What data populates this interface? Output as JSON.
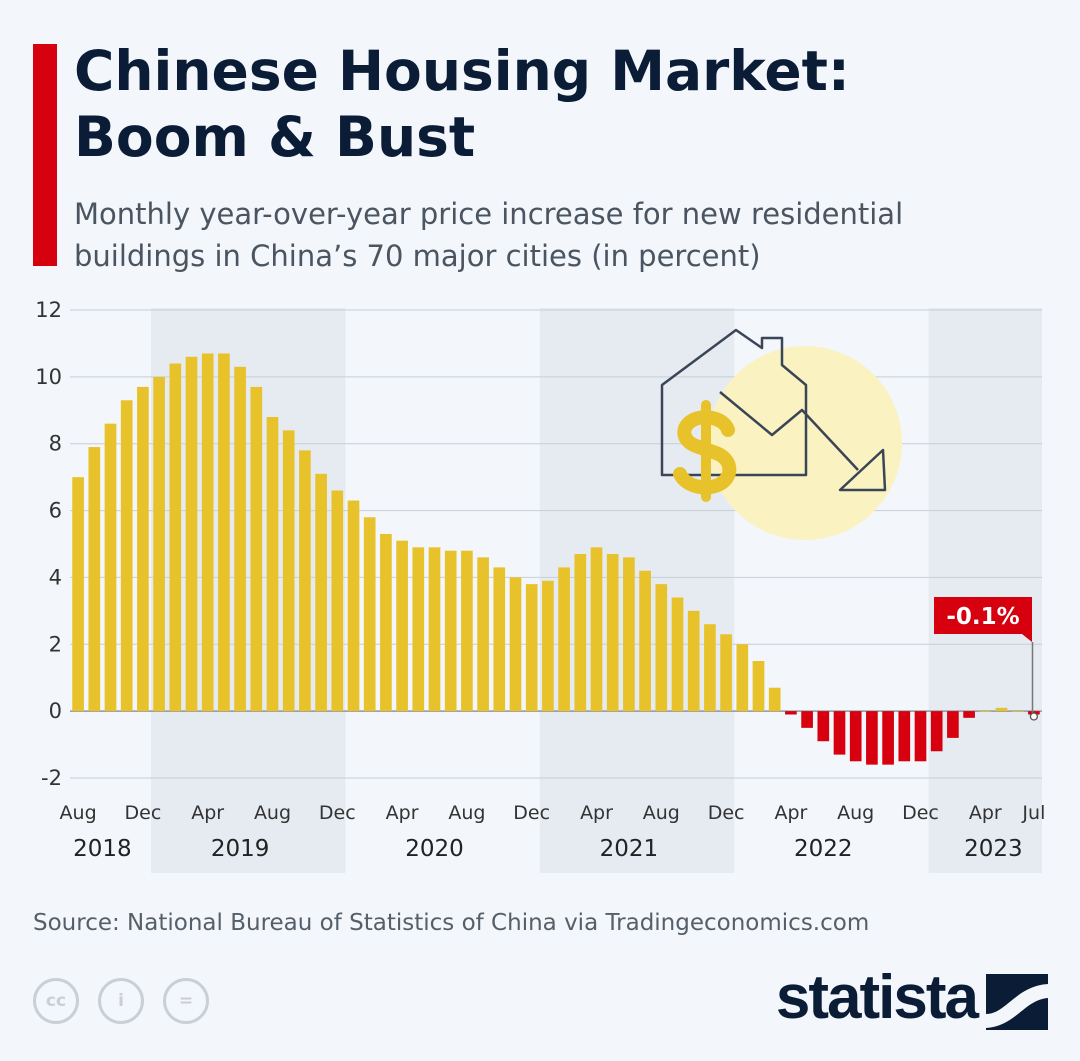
{
  "header": {
    "title_line1": "Chinese Housing Market:",
    "title_line2": "Boom & Bust",
    "subtitle_line1": "Monthly year-over-year price increase for new residential",
    "subtitle_line2": "buildings in China’s 70 major cities (in percent)"
  },
  "footer": {
    "source": "Source: National Bureau of Statistics of China via Tradingeconomics.com",
    "brand": "statista",
    "license_icons": [
      "cc",
      "i",
      "="
    ]
  },
  "colors": {
    "positive": "#e8c22b",
    "negative": "#d7000f",
    "title": "#0b1c36",
    "accent": "#d7000f",
    "band": "#e6ebf2",
    "illustration_circle": "#fbf2c2"
  },
  "icons": [
    "house-price-down-icon",
    "dollar-icon",
    "down-trend-arrow-icon"
  ],
  "chart_data": {
    "type": "bar",
    "title": "Chinese Housing Market: Boom & Bust",
    "xlabel": "",
    "ylabel": "",
    "ylim": [
      -2,
      12
    ],
    "yticks": [
      -2,
      0,
      2,
      4,
      6,
      8,
      10,
      12
    ],
    "grid": true,
    "start": "2018-08",
    "end": "2023-07",
    "x_tick_labels": [
      {
        "label": "Aug",
        "index": 0
      },
      {
        "label": "Dec",
        "index": 4
      },
      {
        "label": "Apr",
        "index": 8
      },
      {
        "label": "Aug",
        "index": 12
      },
      {
        "label": "Dec",
        "index": 16
      },
      {
        "label": "Apr",
        "index": 20
      },
      {
        "label": "Aug",
        "index": 24
      },
      {
        "label": "Dec",
        "index": 28
      },
      {
        "label": "Apr",
        "index": 32
      },
      {
        "label": "Aug",
        "index": 36
      },
      {
        "label": "Dec",
        "index": 40
      },
      {
        "label": "Apr",
        "index": 44
      },
      {
        "label": "Aug",
        "index": 48
      },
      {
        "label": "Dec",
        "index": 52
      },
      {
        "label": "Apr",
        "index": 56
      },
      {
        "label": "Jul",
        "index": 59
      }
    ],
    "year_labels": [
      {
        "label": "2018",
        "center_index": 1.5
      },
      {
        "label": "2019",
        "center_index": 10
      },
      {
        "label": "2020",
        "center_index": 22
      },
      {
        "label": "2021",
        "center_index": 34
      },
      {
        "label": "2022",
        "center_index": 46
      },
      {
        "label": "2023",
        "center_index": 56.5
      }
    ],
    "shaded_years": [
      {
        "from_index": 5,
        "to_index": 16
      },
      {
        "from_index": 29,
        "to_index": 40
      },
      {
        "from_index": 53,
        "to_index": 59
      }
    ],
    "values": [
      7.0,
      7.9,
      8.6,
      9.3,
      9.7,
      10.0,
      10.4,
      10.6,
      10.7,
      10.7,
      10.3,
      9.7,
      8.8,
      8.4,
      7.8,
      7.1,
      6.6,
      6.3,
      5.8,
      5.3,
      5.1,
      4.9,
      4.9,
      4.8,
      4.8,
      4.6,
      4.3,
      4.0,
      3.8,
      3.9,
      4.3,
      4.7,
      4.9,
      4.7,
      4.6,
      4.2,
      3.8,
      3.4,
      3.0,
      2.6,
      2.3,
      2.0,
      1.5,
      0.7,
      -0.1,
      -0.5,
      -0.9,
      -1.3,
      -1.5,
      -1.6,
      -1.6,
      -1.5,
      -1.5,
      -1.2,
      -0.8,
      -0.2,
      0.0,
      0.1,
      0.0,
      -0.1
    ],
    "annotation": {
      "label": "-0.1%",
      "index": 59,
      "value": -0.1
    }
  }
}
